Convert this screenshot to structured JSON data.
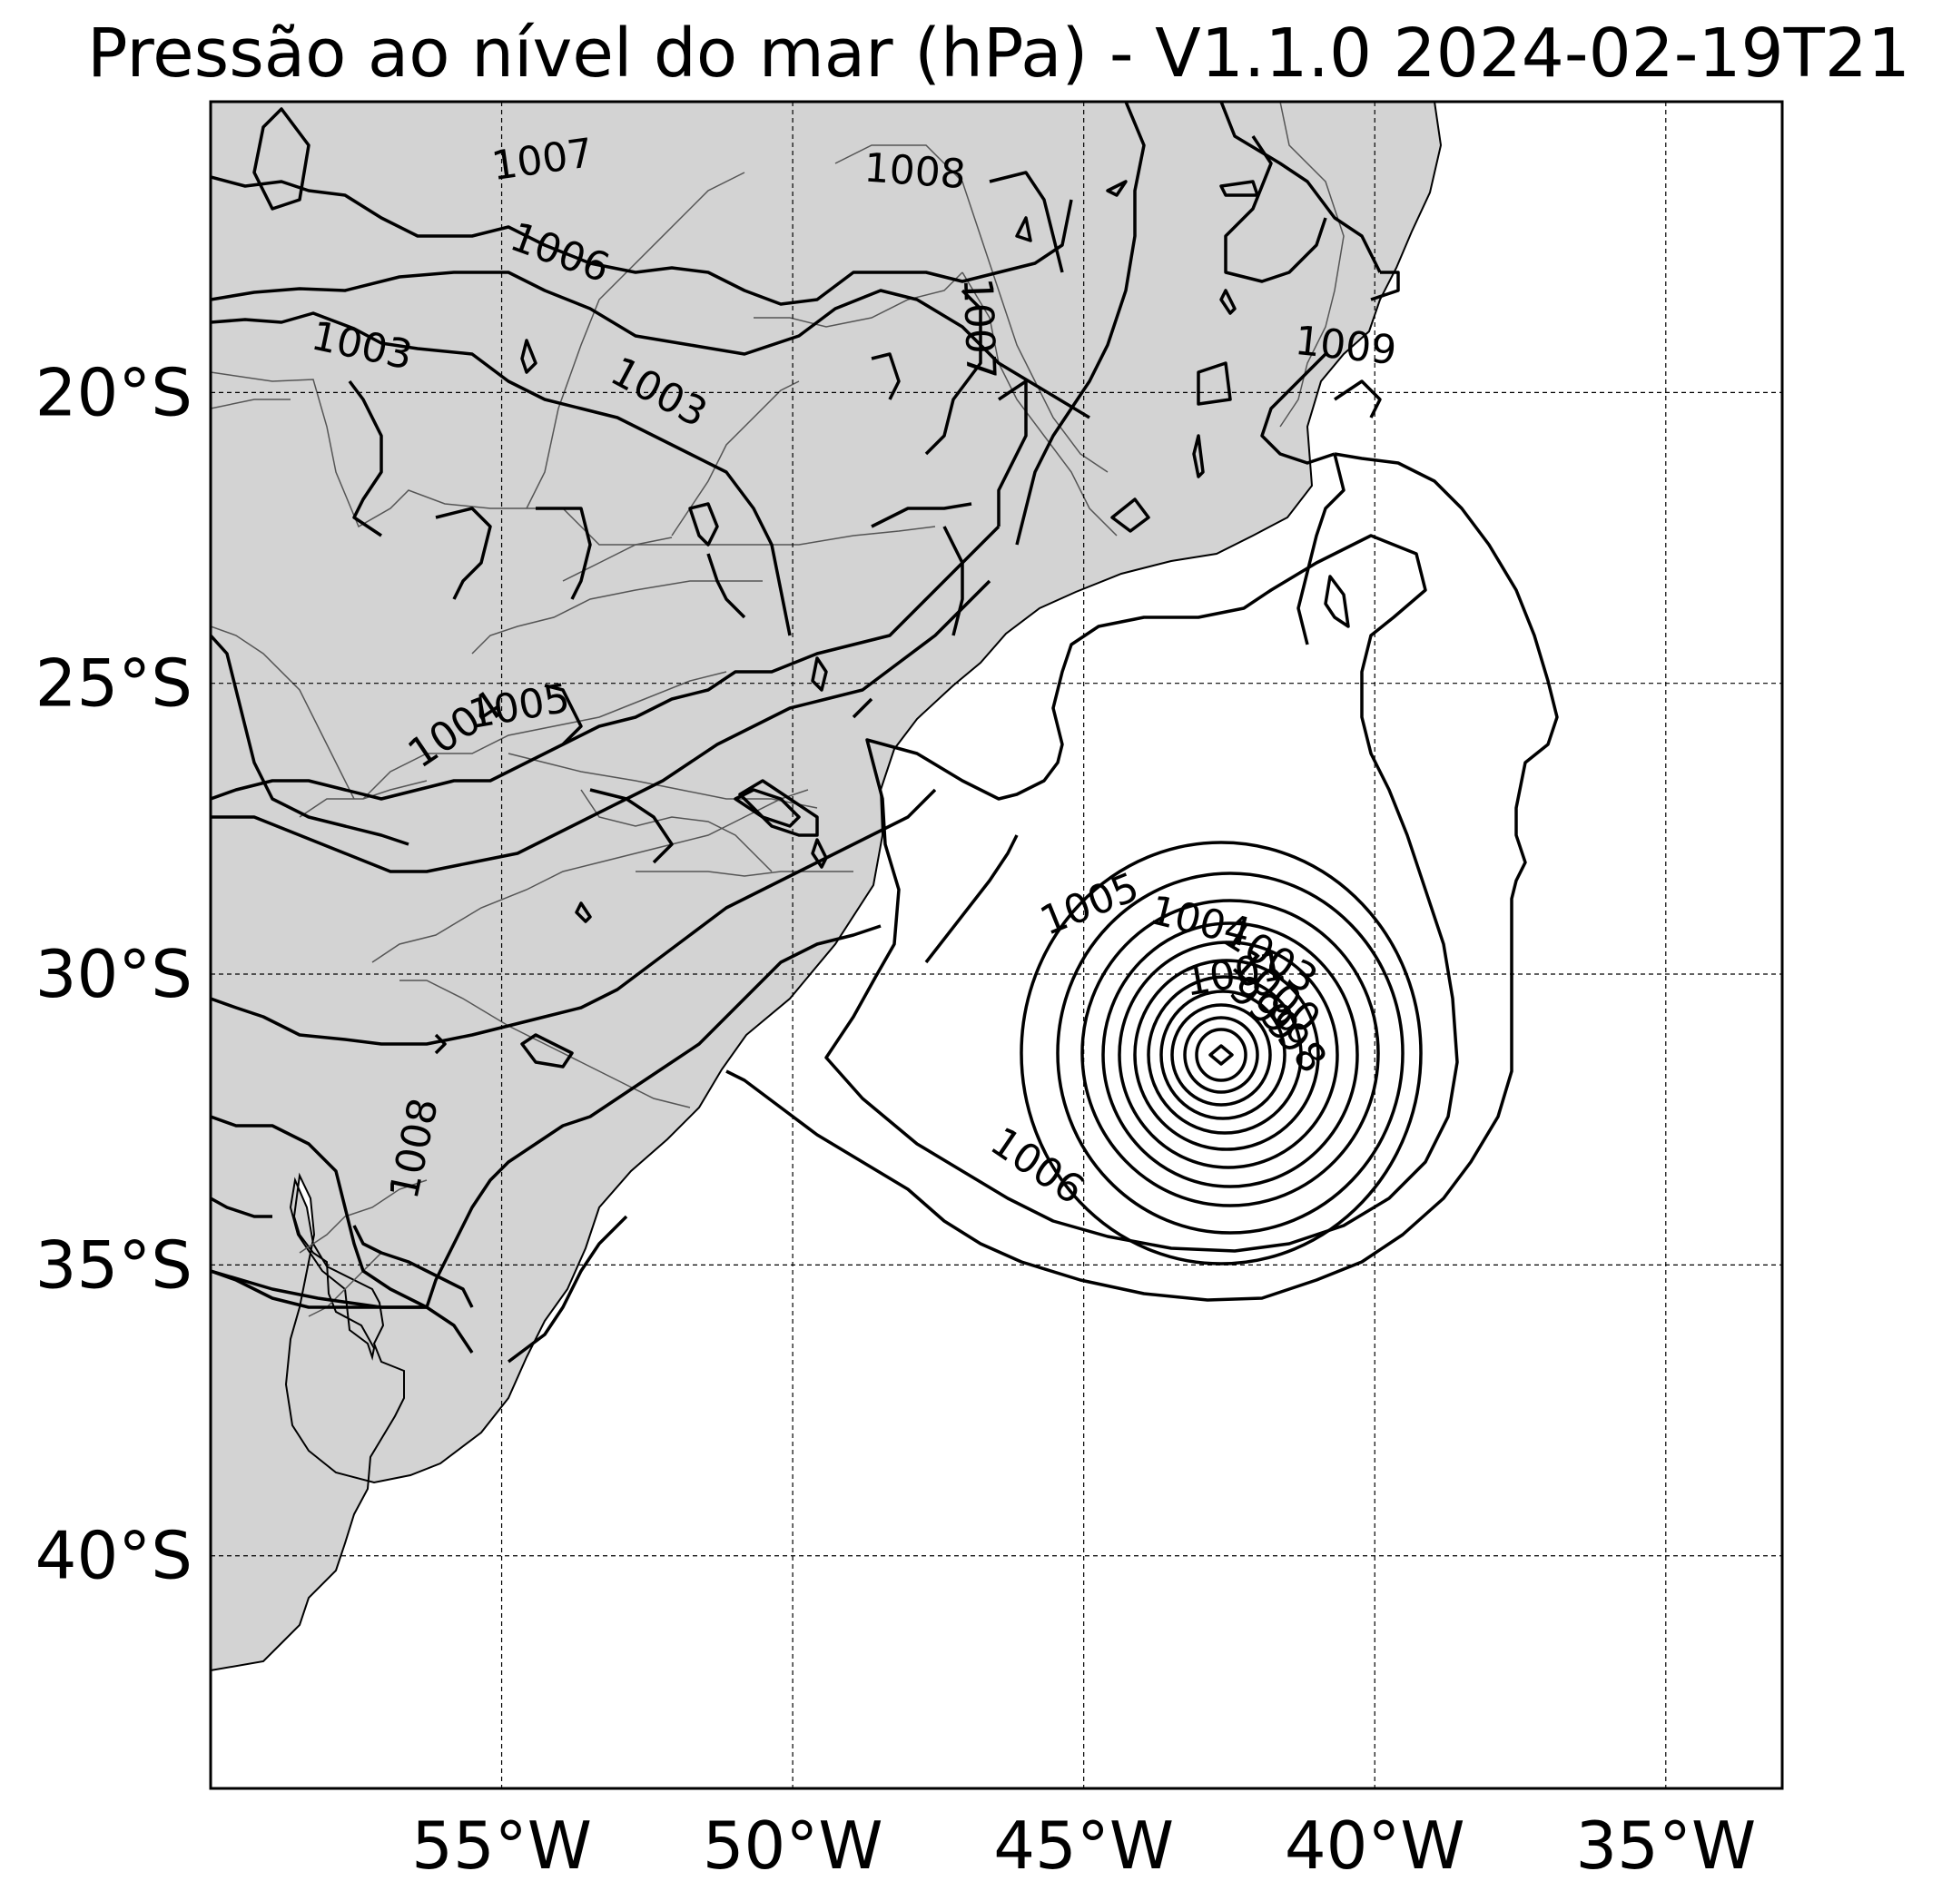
{
  "title": "Pressão ao nível do mar (hPa) - V1.1.0 2024-02-19T21",
  "map": {
    "lon_range": [
      -60,
      -33
    ],
    "lat_range": [
      -44,
      -15
    ],
    "colors": {
      "land": "#d3d3d3",
      "ocean": "#ffffff",
      "contour": "#000000"
    },
    "longitude_ticks": [
      {
        "value": -55,
        "label": "55°W"
      },
      {
        "value": -50,
        "label": "50°W"
      },
      {
        "value": -45,
        "label": "45°W"
      },
      {
        "value": -40,
        "label": "40°W"
      },
      {
        "value": -35,
        "label": "35°W"
      }
    ],
    "latitude_ticks": [
      {
        "value": -20,
        "label": "20°S"
      },
      {
        "value": -25,
        "label": "25°S"
      },
      {
        "value": -30,
        "label": "30°S"
      },
      {
        "value": -35,
        "label": "35°S"
      },
      {
        "value": -40,
        "label": "40°S"
      }
    ],
    "low_center": {
      "lon": -42.5,
      "lat": -31.5
    },
    "contour_labels": [
      {
        "text": "1007",
        "lon": -54.3,
        "lat": -16.0,
        "angle": -8
      },
      {
        "text": "1008",
        "lon": -47.9,
        "lat": -16.2,
        "angle": 4
      },
      {
        "text": "1006",
        "lon": -54.0,
        "lat": -17.6,
        "angle": 20
      },
      {
        "text": "1007",
        "lon": -46.8,
        "lat": -18.9,
        "angle": 88
      },
      {
        "text": "1003",
        "lon": -57.4,
        "lat": -19.2,
        "angle": 12
      },
      {
        "text": "1009",
        "lon": -40.5,
        "lat": -19.2,
        "angle": 6
      },
      {
        "text": "1003",
        "lon": -52.3,
        "lat": -20.0,
        "angle": 28
      },
      {
        "text": "1005",
        "lon": -54.7,
        "lat": -25.4,
        "angle": -10
      },
      {
        "text": "1004",
        "lon": -55.8,
        "lat": -25.8,
        "angle": -34
      },
      {
        "text": "1005",
        "lon": -44.9,
        "lat": -28.8,
        "angle": -22
      },
      {
        "text": "1004",
        "lon": -43.0,
        "lat": -29.1,
        "angle": 14
      },
      {
        "text": "1003",
        "lon": -41.8,
        "lat": -29.7,
        "angle": 32
      },
      {
        "text": "1001",
        "lon": -42.4,
        "lat": -30.0,
        "angle": -10
      },
      {
        "text": "1000",
        "lon": -41.7,
        "lat": -30.3,
        "angle": 42
      },
      {
        "text": "999",
        "lon": -41.9,
        "lat": -30.6,
        "angle": 42
      },
      {
        "text": "998",
        "lon": -41.4,
        "lat": -31.1,
        "angle": 50
      },
      {
        "text": "1006",
        "lon": -45.8,
        "lat": -33.3,
        "angle": 34
      },
      {
        "text": "1008",
        "lon": -56.5,
        "lat": -33.0,
        "angle": -78
      }
    ]
  }
}
